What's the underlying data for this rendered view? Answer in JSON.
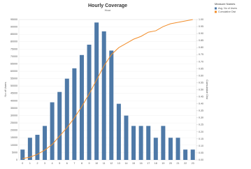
{
  "chart_data": {
    "type": "bar_line",
    "title": "Hourly Coverage",
    "subtitle": "Hour",
    "y_label": "No of Users",
    "y2_label": "Cumulative Dist",
    "legend_title": "Measure Names",
    "categories": [
      "0",
      "1",
      "2",
      "3",
      "4",
      "5",
      "6",
      "7",
      "8",
      "9",
      "10",
      "11",
      "12",
      "13",
      "14",
      "15",
      "16",
      "17",
      "18",
      "19",
      "20",
      "21",
      "22",
      "23"
    ],
    "series": [
      {
        "name": "Avg. No of Users",
        "color": "#4e79a7",
        "type": "bar",
        "values": [
          7000,
          15000,
          17000,
          23000,
          39000,
          46000,
          55000,
          62000,
          71000,
          78000,
          93000,
          87000,
          74000,
          38000,
          30000,
          23000,
          23000,
          23000,
          15000,
          23000,
          15000,
          15000,
          7000,
          7000
        ]
      },
      {
        "name": "Cumulative Dist",
        "color": "#f28e2b",
        "type": "line",
        "axis": "y2",
        "values": [
          0.01,
          0.02,
          0.04,
          0.07,
          0.11,
          0.17,
          0.23,
          0.3,
          0.38,
          0.47,
          0.57,
          0.67,
          0.75,
          0.8,
          0.83,
          0.86,
          0.88,
          0.91,
          0.92,
          0.95,
          0.97,
          0.98,
          0.99,
          1.0
        ]
      }
    ],
    "ylim": [
      0,
      95000
    ],
    "yticks": [
      0,
      5000,
      10000,
      15000,
      20000,
      25000,
      30000,
      35000,
      40000,
      45000,
      50000,
      55000,
      60000,
      65000,
      70000,
      75000,
      80000,
      85000,
      90000,
      95000
    ],
    "y2lim": [
      0,
      1
    ],
    "y2ticks": [
      {
        "value": 0,
        "label": "0.00"
      },
      {
        "value": 0.05,
        "label": "0.05"
      },
      {
        "value": 0.1,
        "label": "0.10"
      },
      {
        "value": 0.15,
        "label": "0.15"
      },
      {
        "value": 0.2,
        "label": "0.20"
      },
      {
        "value": 0.25,
        "label": "0.25"
      },
      {
        "value": 0.3,
        "label": "0.30"
      },
      {
        "value": 0.35,
        "label": "0.35"
      },
      {
        "value": 0.4,
        "label": "0.40"
      },
      {
        "value": 0.45,
        "label": "0.45"
      },
      {
        "value": 0.5,
        "label": "0.50"
      },
      {
        "value": 0.55,
        "label": "0.55"
      },
      {
        "value": 0.6,
        "label": "0.60"
      },
      {
        "value": 0.65,
        "label": "0.65"
      },
      {
        "value": 0.7,
        "label": "0.70"
      },
      {
        "value": 0.75,
        "label": "0.75"
      },
      {
        "value": 0.8,
        "label": "0.80"
      },
      {
        "value": 0.85,
        "label": "0.85"
      },
      {
        "value": 0.9,
        "label": "0.90"
      },
      {
        "value": 0.95,
        "label": "0.95"
      },
      {
        "value": 1,
        "label": "1.00"
      }
    ],
    "grid": true
  }
}
